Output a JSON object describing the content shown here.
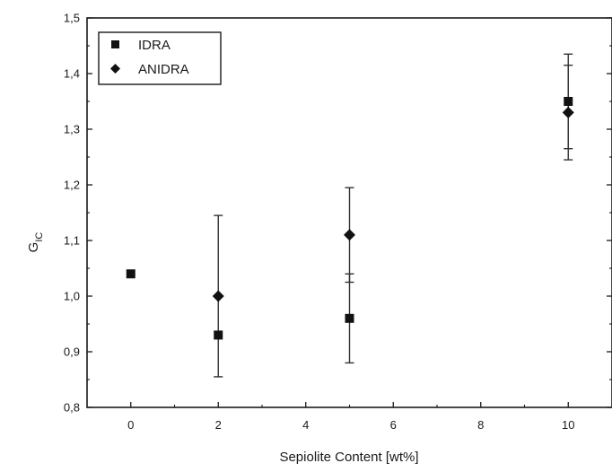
{
  "chart_data": {
    "type": "scatter",
    "xlabel": "Sepiolite Content [wt%]",
    "ylabel": "G",
    "ylabel_sub": "IC",
    "xlim": [
      -1,
      11
    ],
    "ylim": [
      0.8,
      1.5
    ],
    "x_ticks": [
      0,
      2,
      4,
      6,
      8,
      10
    ],
    "x_tick_labels": [
      "0",
      "2",
      "4",
      "6",
      "8",
      "10"
    ],
    "y_ticks": [
      0.8,
      0.9,
      1.0,
      1.1,
      1.2,
      1.3,
      1.4,
      1.5
    ],
    "y_tick_labels": [
      "0,8",
      "0,9",
      "1,0",
      "1,1",
      "1,2",
      "1,3",
      "1,4",
      "1,5"
    ],
    "legend_position": "top-left",
    "grid": false,
    "series": [
      {
        "name": "IDRA",
        "marker": "square",
        "color": "#111111",
        "points": [
          {
            "x": 0,
            "y": 1.04,
            "err": 0
          },
          {
            "x": 2,
            "y": 0.93,
            "err": 0
          },
          {
            "x": 5,
            "y": 0.96,
            "err": 0.08
          },
          {
            "x": 10,
            "y": 1.35,
            "err": 0.085
          }
        ]
      },
      {
        "name": "ANIDRA",
        "marker": "diamond",
        "color": "#111111",
        "points": [
          {
            "x": 2,
            "y": 1.0,
            "err": 0.145
          },
          {
            "x": 5,
            "y": 1.11,
            "err": 0.085
          },
          {
            "x": 10,
            "y": 1.33,
            "err": 0.085
          }
        ]
      }
    ]
  }
}
